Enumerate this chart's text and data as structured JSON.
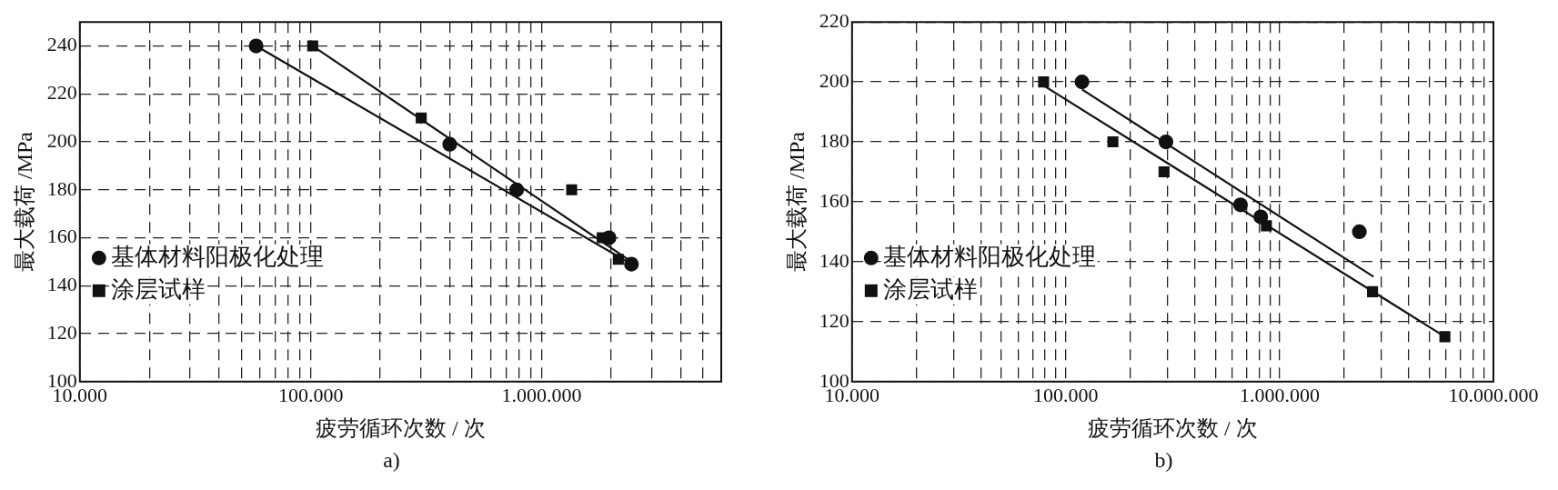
{
  "chart_data": [
    {
      "type": "scatter",
      "xlabel": "疲劳循环次数 / 次",
      "ylabel": "最大载荷 /MPa",
      "log": "x",
      "grid": true,
      "legend": "bottom left",
      "annotations": [
        "a)"
      ],
      "xlim": [
        10000,
        6000000
      ],
      "xticks": [
        {
          "value": 10000,
          "label": "10.000"
        },
        {
          "value": 20000,
          "label": null
        },
        {
          "value": 30000,
          "label": null
        },
        {
          "value": 40000,
          "label": null
        },
        {
          "value": 50000,
          "label": null
        },
        {
          "value": 60000,
          "label": null
        },
        {
          "value": 70000,
          "label": null
        },
        {
          "value": 80000,
          "label": null
        },
        {
          "value": 90000,
          "label": null
        },
        {
          "value": 100000,
          "label": "100.000"
        },
        {
          "value": 200000,
          "label": null
        },
        {
          "value": 300000,
          "label": null
        },
        {
          "value": 400000,
          "label": null
        },
        {
          "value": 500000,
          "label": null
        },
        {
          "value": 600000,
          "label": null
        },
        {
          "value": 700000,
          "label": null
        },
        {
          "value": 800000,
          "label": null
        },
        {
          "value": 900000,
          "label": null
        },
        {
          "value": 1000000,
          "label": "1.000.000"
        },
        {
          "value": 2000000,
          "label": null
        },
        {
          "value": 3000000,
          "label": null
        },
        {
          "value": 4000000,
          "label": null
        },
        {
          "value": 5000000,
          "label": null
        }
      ],
      "ylim": [
        100,
        250
      ],
      "yticks": [
        100,
        120,
        140,
        160,
        180,
        200,
        220,
        240
      ],
      "series": [
        {
          "type": "line",
          "color": "#111111",
          "marker": "none",
          "x": [
            58000,
            2450000
          ],
          "values": [
            240,
            149
          ]
        },
        {
          "type": "line",
          "color": "#111111",
          "marker": "none",
          "x": [
            102000,
            2450000
          ],
          "values": [
            240,
            150
          ]
        },
        {
          "type": "scatter",
          "name": "基体材料阳极化处理",
          "color": "#111111",
          "marker": "circle",
          "x": [
            58000,
            400000,
            780000,
            1960000,
            2450000
          ],
          "values": [
            240,
            199,
            180,
            160,
            149
          ]
        },
        {
          "type": "scatter",
          "name": "涂层试样",
          "color": "#111111",
          "marker": "square",
          "x": [
            102000,
            301000,
            1350000,
            1830000,
            2150000
          ],
          "values": [
            240,
            210,
            180,
            160,
            151
          ]
        }
      ]
    },
    {
      "type": "scatter",
      "xlabel": "疲劳循环次数 / 次",
      "ylabel": "最大载荷 /MPa",
      "log": "x",
      "grid": true,
      "legend": "bottom left",
      "annotations": [
        "b)"
      ],
      "xlim": [
        10000,
        10000000
      ],
      "xticks": [
        {
          "value": 10000,
          "label": "10.000"
        },
        {
          "value": 20000,
          "label": null
        },
        {
          "value": 30000,
          "label": null
        },
        {
          "value": 40000,
          "label": null
        },
        {
          "value": 50000,
          "label": null
        },
        {
          "value": 60000,
          "label": null
        },
        {
          "value": 70000,
          "label": null
        },
        {
          "value": 80000,
          "label": null
        },
        {
          "value": 90000,
          "label": null
        },
        {
          "value": 100000,
          "label": "100.000"
        },
        {
          "value": 200000,
          "label": null
        },
        {
          "value": 300000,
          "label": null
        },
        {
          "value": 400000,
          "label": null
        },
        {
          "value": 500000,
          "label": null
        },
        {
          "value": 600000,
          "label": null
        },
        {
          "value": 700000,
          "label": null
        },
        {
          "value": 800000,
          "label": null
        },
        {
          "value": 900000,
          "label": null
        },
        {
          "value": 1000000,
          "label": "1.000.000"
        },
        {
          "value": 2000000,
          "label": null
        },
        {
          "value": 3000000,
          "label": null
        },
        {
          "value": 4000000,
          "label": null
        },
        {
          "value": 5000000,
          "label": null
        },
        {
          "value": 6000000,
          "label": null
        },
        {
          "value": 7000000,
          "label": null
        },
        {
          "value": 8000000,
          "label": null
        },
        {
          "value": 9000000,
          "label": null
        },
        {
          "value": 10000000,
          "label": "10.000.000"
        }
      ],
      "ylim": [
        100,
        220
      ],
      "yticks": [
        100,
        120,
        140,
        160,
        180,
        200,
        220
      ],
      "series": [
        {
          "type": "line",
          "color": "#111111",
          "marker": "none",
          "x": [
            119000,
            2750000
          ],
          "values": [
            197.5,
            135
          ]
        },
        {
          "type": "line",
          "color": "#111111",
          "marker": "none",
          "x": [
            78700,
            5930000
          ],
          "values": [
            198.8,
            115
          ]
        },
        {
          "type": "scatter",
          "name": "基体材料阳极化处理",
          "color": "#111111",
          "marker": "circle",
          "x": [
            119000,
            294000,
            656000,
            816000,
            2360000
          ],
          "values": [
            200,
            180,
            159,
            155,
            150
          ]
        },
        {
          "type": "scatter",
          "name": "涂层试样",
          "color": "#111111",
          "marker": "square",
          "x": [
            78700,
            166000,
            288000,
            867000,
            2720000,
            5930000
          ],
          "values": [
            200,
            180,
            170,
            152,
            130,
            115
          ]
        }
      ]
    }
  ]
}
